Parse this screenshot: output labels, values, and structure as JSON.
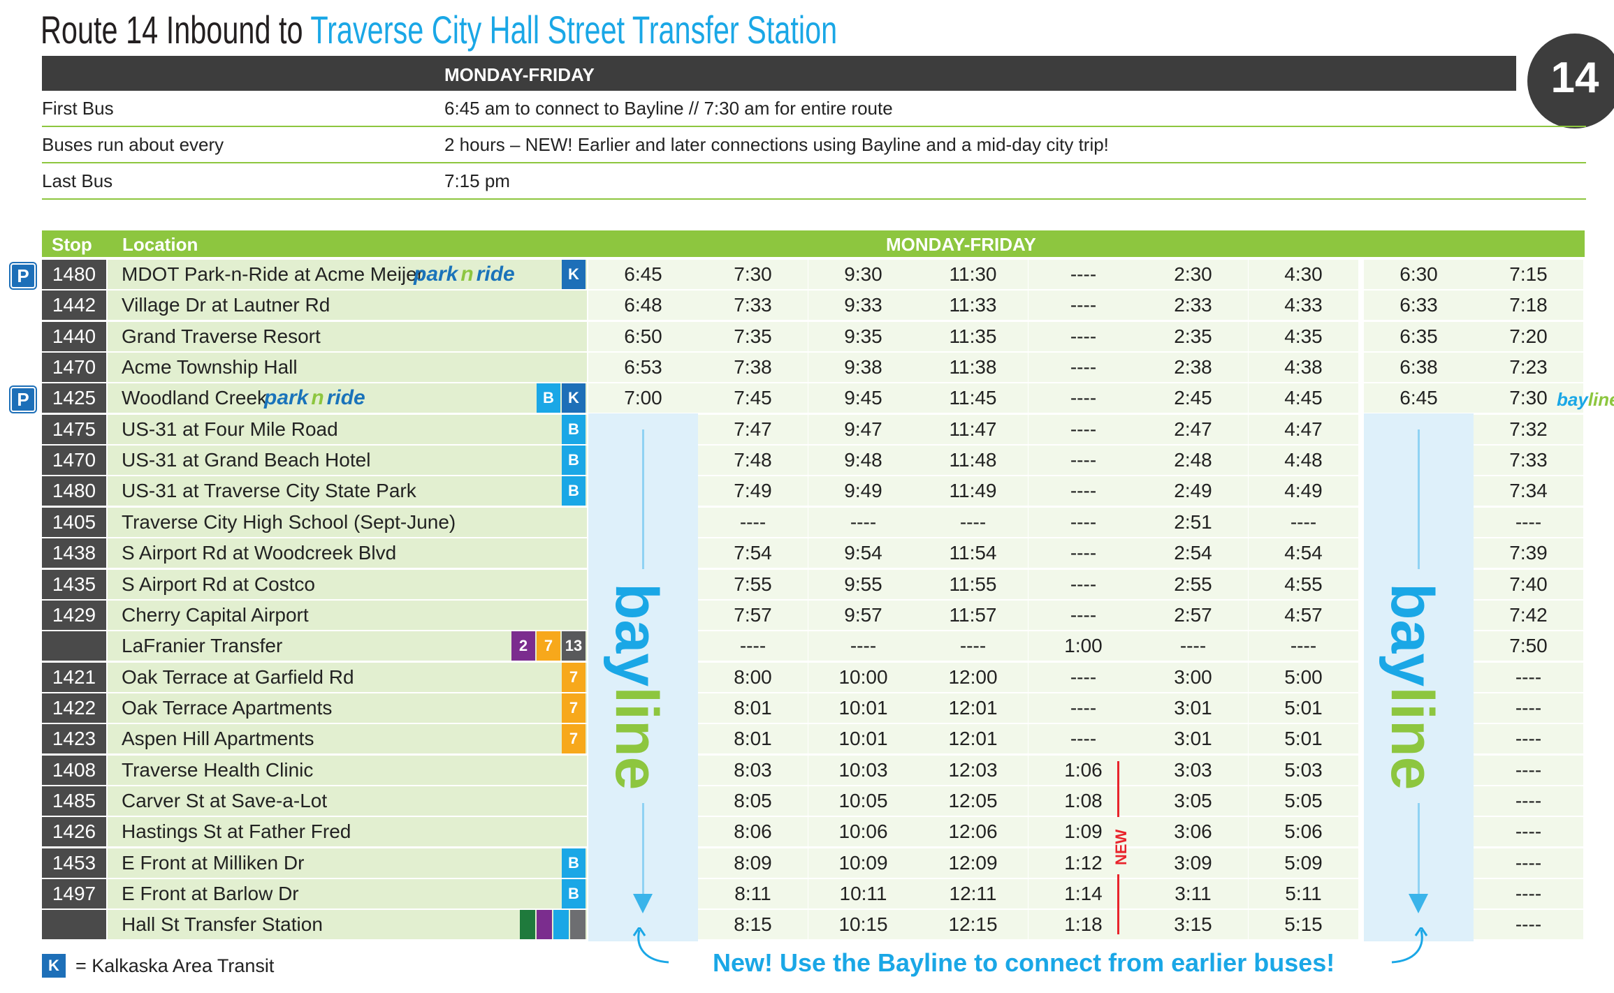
{
  "header": {
    "title_prefix": "Route 14 Inbound to ",
    "title_dest": "Traverse City Hall Street Transfer Station",
    "route_number": "14",
    "days": "MONDAY-FRIDAY"
  },
  "info": [
    {
      "label": "First Bus",
      "value": "6:45 am to connect to Bayline // 7:30 am for entire route"
    },
    {
      "label": "Buses run about every",
      "value": "2 hours – NEW! Earlier and later connections using Bayline and a mid-day city trip!"
    },
    {
      "label": "Last Bus",
      "value": "7:15 pm"
    }
  ],
  "schedule": {
    "col_stop": "Stop",
    "col_location": "Location",
    "days": "MONDAY-FRIDAY",
    "park_n_ride_a": "park",
    "park_n_ride_b": "n",
    "park_n_ride_c": "ride",
    "p_icon": "P",
    "bayline_a": "bay",
    "bayline_b": "line",
    "new_label": "NEW",
    "rows": [
      {
        "stop": "1480",
        "location": "MDOT Park-n-Ride at Acme Meijer",
        "pnr": true,
        "p": true,
        "badges": [
          {
            "t": "K",
            "c": "#1d6fb8"
          }
        ],
        "times": [
          "6:45",
          "7:30",
          "9:30",
          "11:30",
          "----",
          "2:30",
          "4:30",
          "6:30",
          "7:15"
        ]
      },
      {
        "stop": "1442",
        "location": "Village Dr at Lautner Rd",
        "badges": [],
        "times": [
          "6:48",
          "7:33",
          "9:33",
          "11:33",
          "----",
          "2:33",
          "4:33",
          "6:33",
          "7:18"
        ]
      },
      {
        "stop": "1440",
        "location": "Grand Traverse Resort",
        "badges": [],
        "times": [
          "6:50",
          "7:35",
          "9:35",
          "11:35",
          "----",
          "2:35",
          "4:35",
          "6:35",
          "7:20"
        ]
      },
      {
        "stop": "1470",
        "location": "Acme Township Hall",
        "badges": [],
        "times": [
          "6:53",
          "7:38",
          "9:38",
          "11:38",
          "----",
          "2:38",
          "4:38",
          "6:38",
          "7:23"
        ]
      },
      {
        "stop": "1425",
        "location": "Woodland Creek",
        "pnr": true,
        "p": true,
        "badges": [
          {
            "t": "B",
            "c": "#1aa7e6"
          },
          {
            "t": "K",
            "c": "#1d6fb8"
          }
        ],
        "times": [
          "7:00",
          "7:45",
          "9:45",
          "11:45",
          "----",
          "2:45",
          "4:45",
          "6:45",
          "7:30"
        ]
      },
      {
        "stop": "1475",
        "location": "US-31 at Four Mile Road",
        "badges": [
          {
            "t": "B",
            "c": "#1aa7e6"
          }
        ],
        "times": [
          "",
          "7:47",
          "9:47",
          "11:47",
          "----",
          "2:47",
          "4:47",
          "",
          "7:32"
        ]
      },
      {
        "stop": "1470",
        "location": "US-31 at Grand Beach Hotel",
        "badges": [
          {
            "t": "B",
            "c": "#1aa7e6"
          }
        ],
        "times": [
          "",
          "7:48",
          "9:48",
          "11:48",
          "----",
          "2:48",
          "4:48",
          "",
          "7:33"
        ]
      },
      {
        "stop": "1480",
        "location": "US-31 at Traverse City State Park",
        "badges": [
          {
            "t": "B",
            "c": "#1aa7e6"
          }
        ],
        "times": [
          "",
          "7:49",
          "9:49",
          "11:49",
          "----",
          "2:49",
          "4:49",
          "",
          "7:34"
        ]
      },
      {
        "stop": "1405",
        "location": "Traverse City High School (Sept-June)",
        "badges": [],
        "times": [
          "",
          "----",
          "----",
          "----",
          "----",
          "2:51",
          "----",
          "",
          "----"
        ]
      },
      {
        "stop": "1438",
        "location": "S Airport Rd at Woodcreek Blvd",
        "badges": [],
        "times": [
          "",
          "7:54",
          "9:54",
          "11:54",
          "----",
          "2:54",
          "4:54",
          "",
          "7:39"
        ]
      },
      {
        "stop": "1435",
        "location": "S Airport Rd at Costco",
        "badges": [],
        "times": [
          "",
          "7:55",
          "9:55",
          "11:55",
          "----",
          "2:55",
          "4:55",
          "",
          "7:40"
        ]
      },
      {
        "stop": "1429",
        "location": "Cherry Capital Airport",
        "badges": [],
        "times": [
          "",
          "7:57",
          "9:57",
          "11:57",
          "----",
          "2:57",
          "4:57",
          "",
          "7:42"
        ]
      },
      {
        "stop": "",
        "location": "LaFranier Transfer",
        "badges": [
          {
            "t": "2",
            "c": "#7b2d8e"
          },
          {
            "t": "7",
            "c": "#f7a81b"
          },
          {
            "t": "13",
            "c": "#58595b"
          }
        ],
        "times": [
          "",
          "----",
          "----",
          "----",
          "1:00",
          "----",
          "----",
          "",
          "7:50"
        ]
      },
      {
        "stop": "1421",
        "location": "Oak Terrace at Garfield Rd",
        "badges": [
          {
            "t": "7",
            "c": "#f7a81b"
          }
        ],
        "times": [
          "",
          "8:00",
          "10:00",
          "12:00",
          "----",
          "3:00",
          "5:00",
          "",
          "----"
        ]
      },
      {
        "stop": "1422",
        "location": "Oak Terrace Apartments",
        "badges": [
          {
            "t": "7",
            "c": "#f7a81b"
          }
        ],
        "times": [
          "",
          "8:01",
          "10:01",
          "12:01",
          "----",
          "3:01",
          "5:01",
          "",
          "----"
        ]
      },
      {
        "stop": "1423",
        "location": "Aspen Hill Apartments",
        "badges": [
          {
            "t": "7",
            "c": "#f7a81b"
          }
        ],
        "times": [
          "",
          "8:01",
          "10:01",
          "12:01",
          "----",
          "3:01",
          "5:01",
          "",
          "----"
        ]
      },
      {
        "stop": "1408",
        "location": "Traverse Health Clinic",
        "badges": [],
        "times": [
          "",
          "8:03",
          "10:03",
          "12:03",
          "1:06",
          "3:03",
          "5:03",
          "",
          "----"
        ]
      },
      {
        "stop": "1485",
        "location": "Carver St at Save-a-Lot",
        "badges": [],
        "times": [
          "",
          "8:05",
          "10:05",
          "12:05",
          "1:08",
          "3:05",
          "5:05",
          "",
          "----"
        ]
      },
      {
        "stop": "1426",
        "location": "Hastings St at Father Fred",
        "badges": [],
        "times": [
          "",
          "8:06",
          "10:06",
          "12:06",
          "1:09",
          "3:06",
          "5:06",
          "",
          "----"
        ]
      },
      {
        "stop": "1453",
        "location": "E Front at Milliken Dr",
        "badges": [
          {
            "t": "B",
            "c": "#1aa7e6"
          }
        ],
        "times": [
          "",
          "8:09",
          "10:09",
          "12:09",
          "1:12",
          "3:09",
          "5:09",
          "",
          "----"
        ]
      },
      {
        "stop": "1497",
        "location": "E Front at Barlow Dr",
        "badges": [
          {
            "t": "B",
            "c": "#1aa7e6"
          }
        ],
        "times": [
          "",
          "8:11",
          "10:11",
          "12:11",
          "1:14",
          "3:11",
          "5:11",
          "",
          "----"
        ]
      },
      {
        "stop": "",
        "location": "Hall St Transfer Station",
        "badges": [
          {
            "t": "",
            "c": "#1f7a3c"
          },
          {
            "t": "",
            "c": "#7b2d8e"
          },
          {
            "t": "",
            "c": "#1aa7e6"
          },
          {
            "t": "",
            "c": "#6d6e71"
          }
        ],
        "times": [
          "",
          "8:15",
          "10:15",
          "12:15",
          "1:18",
          "3:15",
          "5:15",
          "",
          "----"
        ]
      }
    ]
  },
  "footer": {
    "k_badge": "K",
    "legend": "=  Kalkaska Area Transit",
    "message": "New! Use the Bayline to connect from earlier buses!"
  },
  "colors": {
    "green": "#8dc63f",
    "blue": "#1aa7e6",
    "dark": "#3d3d3d",
    "red": "#e8242c"
  }
}
